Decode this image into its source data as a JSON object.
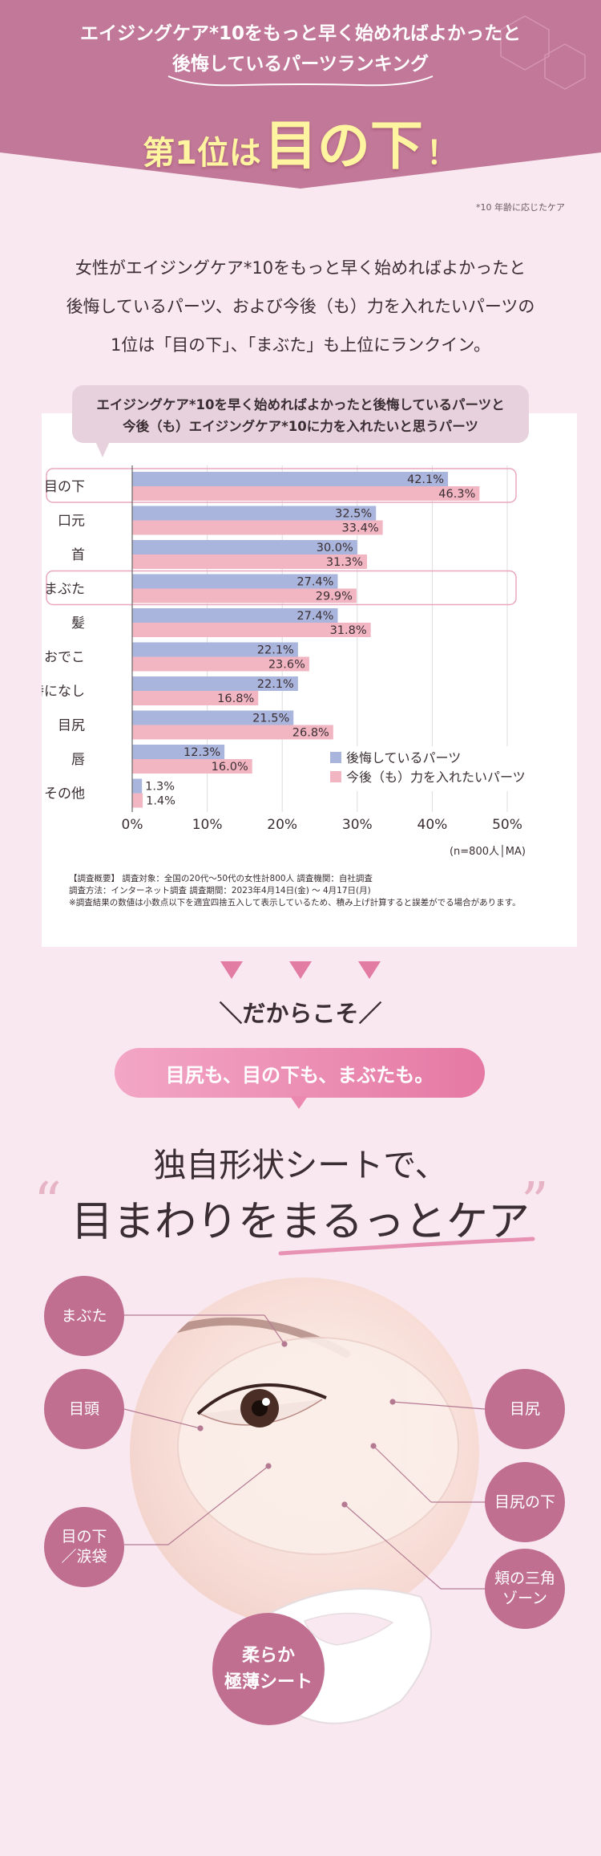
{
  "header": {
    "line1": "エイジングケア*10をもっと早く始めればよかったと",
    "line2": "後悔しているパーツランキング",
    "rank_prefix": "第1位は",
    "rank_big": "目の下",
    "rank_suffix": "！",
    "footnote": "*10 年齢に応じたケア"
  },
  "intro": {
    "line1": "女性がエイジングケア*10をもっと早く始めればよかったと",
    "line2": "後悔しているパーツ、および今後（も）力を入れたいパーツの",
    "line3": "1位は「目の下」、「まぶた」も上位にランクイン。"
  },
  "chart_bubble": {
    "line1": "エイジングケア*10を早く始めればよかったと後悔しているパーツと",
    "line2": "今後（も）エイジングケア*10に力を入れたいと思うパーツ"
  },
  "chart_data": {
    "type": "bar",
    "orientation": "horizontal",
    "categories": [
      "目の下",
      "口元",
      "首",
      "まぶた",
      "髪",
      "おでこ",
      "特になし",
      "目尻",
      "唇",
      "その他"
    ],
    "series": [
      {
        "name": "後悔しているパーツ",
        "color": "#a9b5dc",
        "values": [
          42.1,
          32.5,
          30.0,
          27.4,
          27.4,
          22.1,
          22.1,
          21.5,
          12.3,
          1.3
        ]
      },
      {
        "name": "今後（も）力を入れたいパーツ",
        "color": "#f2b6c3",
        "values": [
          46.3,
          33.4,
          31.3,
          29.9,
          31.8,
          23.6,
          16.8,
          26.8,
          16.0,
          1.4
        ]
      }
    ],
    "value_labels": [
      [
        "42.1%",
        "32.5%",
        "30.0%",
        "27.4%",
        "27.4%",
        "22.1%",
        "22.1%",
        "21.5%",
        "12.3%",
        "1.3%"
      ],
      [
        "46.3%",
        "33.4%",
        "31.3%",
        "29.9%",
        "31.8%",
        "23.6%",
        "16.8%",
        "26.8%",
        "16.0%",
        "1.4%"
      ]
    ],
    "highlighted": [
      "目の下",
      "まぶた"
    ],
    "xlim": [
      0,
      50
    ],
    "xticks": [
      "0%",
      "10%",
      "20%",
      "30%",
      "40%",
      "50%"
    ],
    "sample_note": "(n=800人│MA)",
    "legend_position": "bottom-right",
    "grid": true
  },
  "survey": {
    "line1": "【調査概要】 調査対象：全国の20代～50代の女性計800人 調査機関：自社調査",
    "line2": "調査方法：インターネット調査 調査期間：2023年4月14日(金) ～ 4月17日(月)",
    "line3": "※調査結果の数値は小数点以下を適宜四捨五入して表示しているため、積み上げ計算すると誤差がでる場合があります。"
  },
  "colors": {
    "header": "#c27898",
    "accent_pink": "#e27ca3",
    "label_circle": "#c06f91",
    "series_regret": "#a9b5dc",
    "series_future": "#f2b6c3"
  },
  "section2": {
    "dakara": "＼だからこそ／",
    "pill": "目尻も、目の下も、まぶたも。",
    "sub": "独自形状シートで、",
    "main": "目まわりをまるっとケア",
    "quote_open": "“",
    "quote_close": "”"
  },
  "labels": {
    "mabuta": "まぶた",
    "megashira": "目頭",
    "menoshita_1": "目の下",
    "menoshita_2": "／涙袋",
    "mejiri": "目尻",
    "mejiri_shita": "目尻の下",
    "hoho_1": "頬の三角",
    "hoho_2": "ゾーン",
    "soft_1": "柔らか",
    "soft_2": "極薄シート"
  }
}
